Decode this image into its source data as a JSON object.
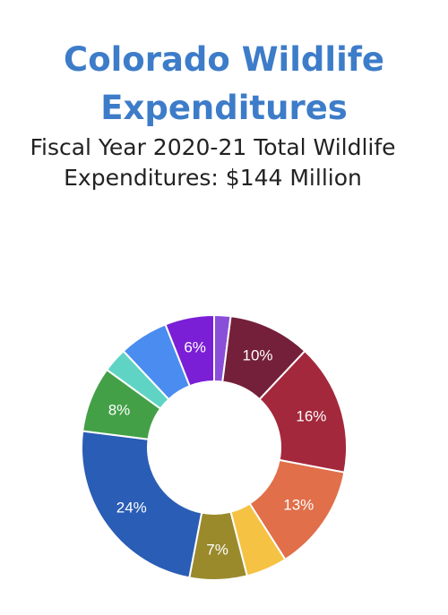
{
  "header": {
    "title_line1": "Colorado Wildlife",
    "title_line2": "Expenditures",
    "subtitle_line1": "Fiscal Year 2020-21 Total Wildlife",
    "subtitle_line2": "Expenditures: $144 Million"
  },
  "chart_data": {
    "type": "pie",
    "donut": true,
    "title": "Colorado Wildlife Expenditures",
    "subtitle": "Fiscal Year 2020-21 Total Wildlife Expenditures: $144 Million",
    "slices": [
      {
        "value": 2,
        "label": "",
        "color": "#8a4fd8"
      },
      {
        "value": 10,
        "label": "10%",
        "color": "#74203a"
      },
      {
        "value": 16,
        "label": "16%",
        "color": "#a3283c"
      },
      {
        "value": 13,
        "label": "13%",
        "color": "#e06f4a"
      },
      {
        "value": 5,
        "label": "",
        "color": "#f5c244"
      },
      {
        "value": 7,
        "label": "7%",
        "color": "#9a8a2c"
      },
      {
        "value": 24,
        "label": "24%",
        "color": "#2a5db5"
      },
      {
        "value": 8,
        "label": "8%",
        "color": "#43a047"
      },
      {
        "value": 3,
        "label": "",
        "color": "#5fd4c4"
      },
      {
        "value": 6,
        "label": "",
        "color": "#4a8cf0"
      },
      {
        "value": 6,
        "label": "6%",
        "color": "#7a1fd6"
      }
    ]
  }
}
